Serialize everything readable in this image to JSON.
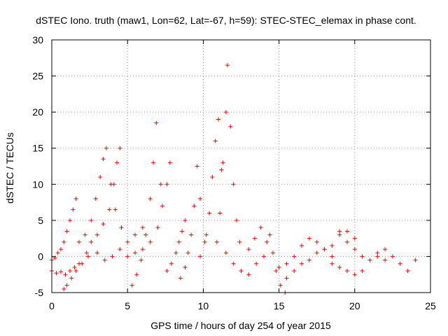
{
  "chart_data": {
    "type": "scatter",
    "title": "dSTEC Iono. truth (maw1, Lon=62, Lat=-67, h=59): STEC-STEC_elemax in phase cont.",
    "xlabel": "GPS time / hours of day 254 of year 2015",
    "ylabel": "dSTEC  / TECUs",
    "xlim": [
      0,
      25
    ],
    "ylim": [
      -5,
      30
    ],
    "xticks": [
      0,
      5,
      10,
      15,
      20,
      25
    ],
    "yticks": [
      -5,
      0,
      5,
      10,
      15,
      20,
      25,
      30
    ],
    "grid": true,
    "marker": "plus",
    "color": "#ff0000",
    "series": [
      {
        "x": [
          0.0,
          0.2,
          0.4,
          0.6,
          0.8,
          1.0,
          1.2,
          1.4,
          1.6
        ],
        "y": [
          -0.5,
          -0.2,
          0.5,
          1.0,
          2.0,
          3.5,
          5.0,
          6.5,
          8.0
        ]
      },
      {
        "x": [
          0.0,
          0.3,
          0.6,
          0.9,
          1.2,
          1.5,
          1.8
        ],
        "y": [
          -2.0,
          -2.3,
          -2.1,
          -2.5,
          -2.0,
          -1.5,
          -1.0
        ]
      },
      {
        "x": [
          0.8,
          1.0,
          1.3,
          1.6,
          2.0,
          2.4
        ],
        "y": [
          -4.5,
          -4.0,
          -3.0,
          -2.0,
          -1.0,
          0.0
        ]
      },
      {
        "x": [
          1.8,
          2.2,
          2.6,
          2.9,
          3.2,
          3.4,
          3.6,
          3.9,
          4.2,
          4.6
        ],
        "y": [
          2.0,
          3.0,
          5.0,
          8.0,
          11.0,
          13.5,
          15.0,
          10.0,
          6.5,
          4.0
        ]
      },
      {
        "x": [
          2.3,
          2.6,
          3.0,
          3.4,
          3.8,
          4.1,
          4.3,
          4.5
        ],
        "y": [
          0.5,
          2.0,
          3.0,
          4.5,
          6.5,
          10.0,
          13.0,
          15.0
        ]
      },
      {
        "x": [
          3.0,
          3.5,
          4.0,
          4.5,
          5.0,
          5.5,
          6.0
        ],
        "y": [
          0.5,
          -0.5,
          0.0,
          1.0,
          2.0,
          3.0,
          4.0
        ]
      },
      {
        "x": [
          5.3,
          5.6,
          5.9,
          6.2,
          6.5,
          6.7,
          6.9,
          7.2
        ],
        "y": [
          -4.0,
          -2.5,
          -0.5,
          3.0,
          8.0,
          13.0,
          18.5,
          10.0
        ]
      },
      {
        "x": [
          5.0,
          5.5,
          6.0,
          6.5,
          7.0,
          7.3,
          7.6,
          7.8
        ],
        "y": [
          0.0,
          0.5,
          1.0,
          2.0,
          4.0,
          7.0,
          10.0,
          13.0
        ]
      },
      {
        "x": [
          7.6,
          7.9,
          8.2,
          8.4,
          8.6,
          8.8
        ],
        "y": [
          -2.0,
          -1.0,
          0.5,
          2.0,
          3.5,
          5.0
        ]
      },
      {
        "x": [
          8.5,
          8.8,
          9.0,
          9.2,
          9.4,
          9.6,
          9.8,
          10.2
        ],
        "y": [
          -3.0,
          -1.5,
          0.5,
          3.0,
          7.0,
          12.5,
          8.0,
          3.0
        ]
      },
      {
        "x": [
          9.8,
          10.1,
          10.4,
          10.6,
          10.8,
          11.0,
          11.2
        ],
        "y": [
          0.0,
          2.0,
          6.0,
          11.0,
          16.0,
          19.0,
          12.0
        ]
      },
      {
        "x": [
          10.9,
          11.1,
          11.3,
          11.5,
          11.6,
          11.8,
          12.0,
          12.2,
          12.4
        ],
        "y": [
          2.0,
          6.0,
          13.0,
          20.0,
          26.5,
          18.0,
          10.0,
          5.0,
          2.0
        ]
      },
      {
        "x": [
          11.5,
          12.0,
          12.5,
          13.0,
          13.5,
          14.0,
          14.4,
          14.8,
          15.1,
          15.4
        ],
        "y": [
          0.5,
          -1.0,
          -2.0,
          -2.5,
          -1.0,
          0.0,
          3.0,
          -2.0,
          -4.0,
          -5.0
        ]
      },
      {
        "x": [
          13.0,
          13.4,
          13.8,
          14.2,
          14.6
        ],
        "y": [
          1.0,
          2.5,
          4.0,
          2.0,
          0.5
        ]
      },
      {
        "x": [
          15.0,
          15.5,
          16.0,
          16.5,
          17.0,
          17.5,
          18.0,
          18.5
        ],
        "y": [
          -1.5,
          -1.0,
          0.0,
          1.5,
          2.5,
          2.0,
          1.0,
          0.0
        ]
      },
      {
        "x": [
          15.5,
          16.0,
          16.5,
          17.0,
          17.5,
          18.0,
          18.5,
          19.0,
          19.5,
          20.0
        ],
        "y": [
          -3.0,
          -2.0,
          -1.0,
          -0.5,
          0.5,
          1.0,
          1.5,
          3.0,
          3.5,
          2.5
        ]
      },
      {
        "x": [
          18.5,
          19.0,
          19.5,
          20.0,
          20.5
        ],
        "y": [
          -1.0,
          -1.5,
          -2.0,
          -2.5,
          -2.0
        ]
      },
      {
        "x": [
          19.0,
          19.5,
          20.0,
          20.5,
          21.0,
          21.5,
          22.0
        ],
        "y": [
          3.5,
          2.0,
          1.0,
          0.0,
          -0.5,
          0.5,
          1.0
        ]
      },
      {
        "x": [
          21.5,
          22.0,
          22.5,
          23.0,
          23.5,
          24.0
        ],
        "y": [
          0.0,
          -0.5,
          0.0,
          -1.0,
          -2.0,
          -0.5
        ]
      }
    ]
  }
}
